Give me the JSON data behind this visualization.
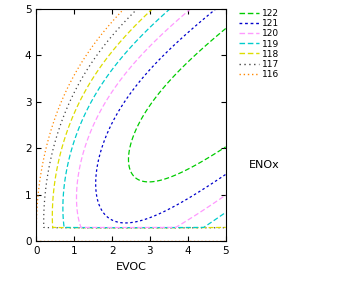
{
  "xlabel": "EVOC",
  "ylabel": "ENOx",
  "xlim": [
    0,
    5
  ],
  "ylim": [
    0,
    5
  ],
  "xticks": [
    0,
    1,
    2,
    3,
    4,
    5
  ],
  "yticks": [
    0,
    1,
    2,
    3,
    4,
    5
  ],
  "contour_levels": [
    116,
    117,
    118,
    119,
    120,
    121,
    122
  ],
  "colors": {
    "116": "#ff8800",
    "117": "#444444",
    "118": "#dddd00",
    "119": "#00cccc",
    "120": "#ff99ff",
    "121": "#0000cc",
    "122": "#00cc00"
  },
  "legend_labels": [
    "122",
    "121",
    "120",
    "119",
    "118",
    "117",
    "116"
  ],
  "fig_width": 3.64,
  "fig_height": 2.84,
  "dpi": 100
}
